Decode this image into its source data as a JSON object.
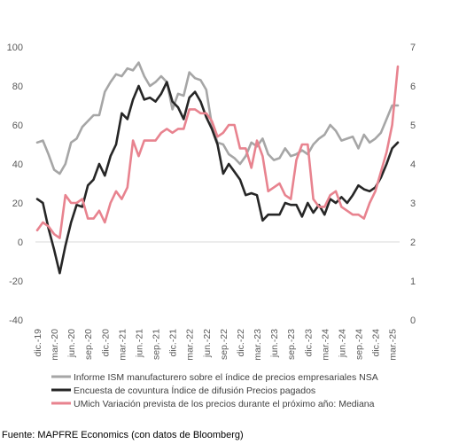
{
  "chart_data": {
    "type": "line",
    "title": "",
    "xlabel": "",
    "ylabel_left": "",
    "ylabel_right": "",
    "ylim_left": [
      -40,
      100
    ],
    "yticks_left": [
      -40,
      -20,
      0,
      20,
      40,
      60,
      80,
      100
    ],
    "ylim_right": [
      0,
      7
    ],
    "yticks_right": [
      0,
      1,
      2,
      3,
      4,
      5,
      6,
      7
    ],
    "grid": false,
    "legend_position": "bottom",
    "x_tick_labels": [
      "dic.-19",
      "mar.-20",
      "jun.-20",
      "sep.-20",
      "dic.-20",
      "mar.-21",
      "jun.-21",
      "sep.-21",
      "dic.-21",
      "mar.-22",
      "jun.-22",
      "sep.-22",
      "dic.-22",
      "mar.-23",
      "jun.-23",
      "sep.-23",
      "dic.-23",
      "mar.-24",
      "jun.-24",
      "sep.-24",
      "dic.-24",
      "mar.-25"
    ],
    "x_tick_index": [
      0,
      3,
      6,
      9,
      12,
      15,
      18,
      21,
      24,
      27,
      30,
      33,
      36,
      39,
      42,
      45,
      48,
      51,
      54,
      57,
      60,
      63
    ],
    "series": [
      {
        "name": "Informe ISM manufacturero sobre el índice de precios empresariales NSA",
        "color": "#a6a6a6",
        "axis": "left",
        "values": [
          51,
          52,
          45,
          37,
          35,
          40,
          51,
          53,
          59,
          62,
          65,
          65,
          77,
          82,
          86,
          85,
          89,
          88,
          92,
          85,
          80,
          82,
          85,
          82,
          68,
          76,
          75,
          87,
          84,
          83,
          78,
          60,
          51,
          50,
          45,
          43,
          40,
          44,
          51,
          49,
          53,
          45,
          42,
          43,
          48,
          44,
          45,
          47,
          45,
          50,
          53,
          55,
          60,
          57,
          52,
          53,
          54,
          48,
          55,
          51,
          53,
          56,
          63,
          70,
          70
        ]
      },
      {
        "name": "Encuesta de covuntura Índice de difusión Precios pagados",
        "color": "#262626",
        "axis": "left",
        "values": [
          22,
          20,
          7,
          -4,
          -16,
          -2,
          10,
          19,
          18,
          29,
          32,
          40,
          34,
          44,
          50,
          66,
          63,
          73,
          80,
          73,
          74,
          72,
          76,
          82,
          72,
          69,
          63,
          74,
          77,
          72,
          64,
          58,
          50,
          35,
          40,
          36,
          32,
          24,
          25,
          24,
          11,
          14,
          14,
          14,
          20,
          19,
          19,
          13,
          20,
          15,
          19,
          14,
          22,
          20,
          23,
          20,
          24,
          29,
          27,
          26,
          28,
          33,
          40,
          48,
          51
        ]
      },
      {
        "name": "UMich Variación prevista de los precios durante el próximo año: Mediana",
        "color": "#e8838f",
        "axis": "right",
        "values": [
          2.3,
          2.5,
          2.4,
          2.2,
          2.1,
          3.2,
          3.0,
          3.0,
          3.1,
          2.6,
          2.6,
          2.8,
          2.5,
          3.0,
          3.3,
          3.1,
          3.4,
          4.6,
          4.2,
          4.6,
          4.6,
          4.6,
          4.8,
          4.9,
          4.8,
          4.9,
          4.9,
          5.4,
          5.4,
          5.3,
          5.3,
          5.1,
          4.7,
          4.8,
          5.0,
          5.0,
          4.4,
          4.4,
          3.9,
          4.6,
          4.2,
          3.3,
          3.4,
          3.5,
          3.2,
          3.1,
          4.1,
          4.5,
          4.5,
          3.1,
          2.9,
          2.9,
          3.2,
          3.3,
          2.9,
          2.8,
          2.7,
          2.7,
          2.6,
          3.0,
          3.3,
          3.8,
          4.3,
          5.0,
          6.5
        ]
      }
    ],
    "source": "Fuente: MAPFRE Economics (con datos de Bloomberg)"
  }
}
